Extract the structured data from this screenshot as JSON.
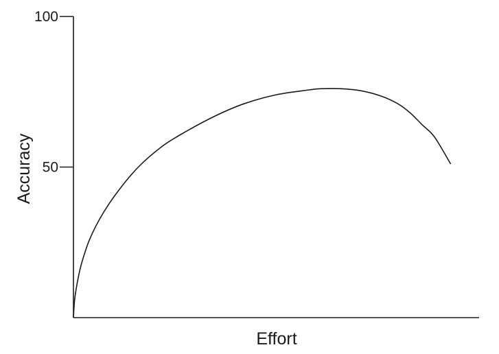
{
  "chart_data": {
    "type": "line",
    "xlabel": "Effort",
    "ylabel": "Accuracy",
    "ylim": [
      0,
      100
    ],
    "xlim": [
      0,
      100
    ],
    "yticks": [
      {
        "value": 100,
        "label": "100"
      },
      {
        "value": 50,
        "label": "50"
      }
    ],
    "xticks": [],
    "grid": false,
    "series": [
      {
        "x": [
          0,
          0.3,
          1,
          2,
          4,
          7,
          11,
          16,
          22,
          28,
          35,
          42,
          50,
          58,
          61,
          66,
          71,
          76,
          80,
          83,
          86,
          89,
          93
        ],
        "y": [
          0,
          6,
          12,
          18,
          26,
          34,
          42,
          50,
          57,
          62,
          67,
          71,
          74,
          75.6,
          76,
          76,
          75.3,
          73.5,
          71,
          68,
          64,
          60,
          51
        ]
      }
    ],
    "colors": {
      "line": "#1a1a1a",
      "background": "#ffffff"
    }
  }
}
